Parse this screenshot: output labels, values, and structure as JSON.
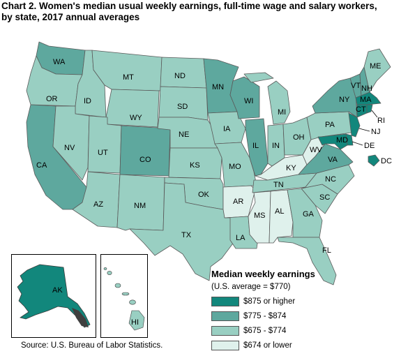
{
  "title_line1": "Chart 2. Women's median usual weekly earnings, full-time wage and salary workers,",
  "title_line2": "by state, 2017 annual averages",
  "legend": {
    "title": "Median weekly earnings",
    "subtitle": "(U.S. average = $770)",
    "items": [
      {
        "label": "$875 or higher",
        "color": "#12877c"
      },
      {
        "label": "$775 - $874",
        "color": "#5ea89e"
      },
      {
        "label": "$675 - $774",
        "color": "#99cfc2"
      },
      {
        "label": "$674 or lower",
        "color": "#dff1ec"
      }
    ]
  },
  "source": "Source: U.S. Bureau of Labor Statistics.",
  "states": {
    "WA": "WA",
    "OR": "OR",
    "CA": "CA",
    "ID": "ID",
    "NV": "NV",
    "MT": "MT",
    "WY": "WY",
    "UT": "UT",
    "AZ": "AZ",
    "CO": "CO",
    "NM": "NM",
    "ND": "ND",
    "SD": "SD",
    "NE": "NE",
    "KS": "KS",
    "OK": "OK",
    "TX": "TX",
    "MN": "MN",
    "IA": "IA",
    "MO": "MO",
    "AR": "AR",
    "LA": "LA",
    "WI": "WI",
    "IL": "IL",
    "MI": "MI",
    "IN": "IN",
    "OH": "OH",
    "KY": "KY",
    "TN": "TN",
    "MS": "MS",
    "AL": "AL",
    "GA": "GA",
    "FL": "FL",
    "SC": "SC",
    "NC": "NC",
    "VA": "VA",
    "WV": "WV",
    "PA": "PA",
    "NY": "NY",
    "VT": "VT",
    "NH": "NH",
    "ME": "ME",
    "MA": "MA",
    "CT": "CT",
    "RI": "RI",
    "NJ": "NJ",
    "DE": "DE",
    "MD": "MD",
    "DC": "DC",
    "AK": "AK",
    "HI": "HI"
  }
}
